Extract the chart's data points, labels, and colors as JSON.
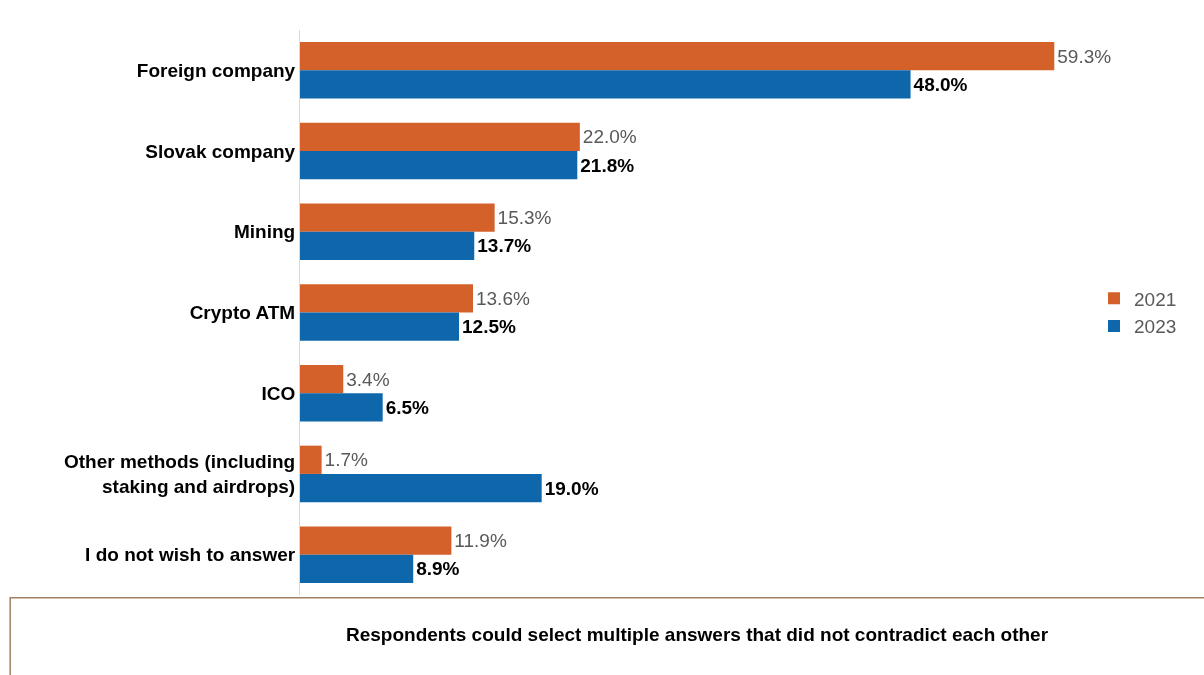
{
  "chart_data": {
    "type": "bar",
    "orientation": "horizontal",
    "categories": [
      "Foreign company",
      "Slovak company",
      "Mining",
      "Crypto ATM",
      "ICO",
      "Other methods (including staking and airdrops)",
      "I do not wish to answer"
    ],
    "series": [
      {
        "name": "2021",
        "color": "#d4602a",
        "values": [
          59.3,
          22.0,
          15.3,
          13.6,
          3.4,
          1.7,
          11.9
        ],
        "value_labels": [
          "59.3%",
          "22.0%",
          "15.3%",
          "13.6%",
          "3.4%",
          "1.7%",
          "11.9%"
        ]
      },
      {
        "name": "2023",
        "color": "#0f67ab",
        "values": [
          48.0,
          21.8,
          13.7,
          12.5,
          6.5,
          19.0,
          8.9
        ],
        "value_labels": [
          "48.0%",
          "21.8%",
          "13.7%",
          "12.5%",
          "6.5%",
          "19.0%",
          "8.9%"
        ]
      }
    ],
    "legend": "right",
    "grid": false,
    "annotations": [
      "Respondents could select multiple answers that did not contradict each other"
    ]
  }
}
